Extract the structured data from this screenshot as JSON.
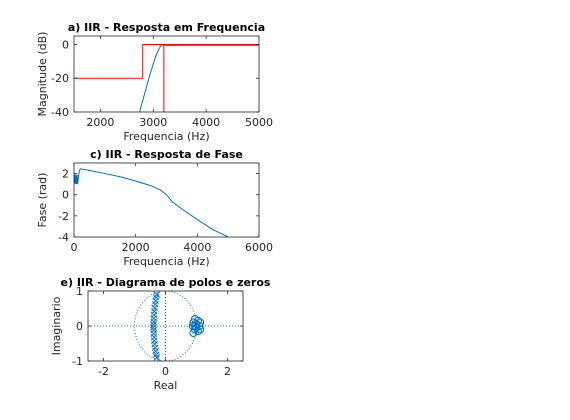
{
  "chart_data": [
    {
      "type": "line",
      "title": "a) IIR - Resposta em Frequencia",
      "xlabel": "Frequencia (Hz)",
      "ylabel": "Magnitude (dB)",
      "xlim": [
        1500,
        5000
      ],
      "ylim": [
        -40,
        5
      ],
      "xticks": [
        2000,
        3000,
        4000,
        5000
      ],
      "yticks": [
        0,
        -20,
        -40
      ],
      "series": [
        {
          "color": "#0072BD",
          "x": [
            2740,
            2780,
            2820,
            2860,
            2900,
            2940,
            2980,
            3020,
            3060,
            3100,
            3140,
            3180,
            3220,
            3260,
            3400,
            3600,
            4000,
            4500,
            5000
          ],
          "y": [
            -40,
            -35.5,
            -31,
            -26.5,
            -22,
            -17.5,
            -13.5,
            -9.5,
            -6,
            -3,
            -1,
            -0.2,
            0,
            0,
            0,
            0,
            0,
            0,
            0
          ]
        },
        {
          "color": "#FF0000",
          "x": [
            1500,
            2800,
            2800,
            5000
          ],
          "y": [
            -20,
            -20,
            0,
            0
          ]
        },
        {
          "color": "#FF0000",
          "x": [
            3200,
            3200,
            5000
          ],
          "y": [
            -40,
            -0.5,
            -0.5
          ]
        }
      ]
    },
    {
      "type": "line",
      "title": "c) IIR - Resposta de Fase",
      "xlabel": "Frequencia (Hz)",
      "ylabel": "Fase (rad)",
      "xlim": [
        0,
        6000
      ],
      "ylim": [
        -4,
        3
      ],
      "xticks": [
        0,
        2000,
        4000,
        6000
      ],
      "yticks": [
        2,
        0,
        -2,
        -4
      ],
      "series": [
        {
          "color": "#0072BD",
          "x": [
            0,
            20,
            40,
            60,
            80,
            100,
            120,
            150,
            200,
            500,
            1000,
            1500,
            2000,
            2500,
            2800,
            3000,
            3200,
            3500,
            4000,
            4500,
            5000
          ],
          "y": [
            1.0,
            1.9,
            1.0,
            1.9,
            1.0,
            1.9,
            1.0,
            1.9,
            2.45,
            2.3,
            2.0,
            1.7,
            1.3,
            0.85,
            0.45,
            0.0,
            -0.7,
            -1.35,
            -2.35,
            -3.3,
            -4.0
          ]
        }
      ]
    },
    {
      "type": "scatter",
      "title": "e) IIR - Diagrama de polos e zeros",
      "xlabel": "Real",
      "ylabel": "Imaginario",
      "xlim": [
        -2.5,
        2.5
      ],
      "ylim": [
        -1,
        1
      ],
      "xticks": [
        -2,
        0,
        2
      ],
      "yticks": [
        1,
        0,
        -1
      ],
      "unit_circle": true,
      "series": [
        {
          "marker": "o",
          "color": "#0072BD",
          "points": [
            [
              0.95,
              0.2
            ],
            [
              0.9,
              0.1
            ],
            [
              1.05,
              0.15
            ],
            [
              0.95,
              0.0
            ],
            [
              1.1,
              0.0
            ],
            [
              0.95,
              -0.1
            ],
            [
              1.05,
              -0.15
            ],
            [
              0.9,
              -0.2
            ],
            [
              1.0,
              0.05
            ],
            [
              1.0,
              -0.05
            ],
            [
              1.12,
              0.1
            ],
            [
              1.12,
              -0.1
            ],
            [
              0.88,
              0.0
            ]
          ]
        },
        {
          "marker": "x",
          "color": "#0072BD",
          "points": [
            [
              -0.28,
              0.9
            ],
            [
              -0.3,
              0.82
            ],
            [
              -0.32,
              0.72
            ],
            [
              -0.33,
              0.62
            ],
            [
              -0.35,
              0.52
            ],
            [
              -0.36,
              0.42
            ],
            [
              -0.37,
              0.32
            ],
            [
              -0.38,
              0.22
            ],
            [
              -0.38,
              0.12
            ],
            [
              -0.39,
              0.04
            ],
            [
              -0.39,
              -0.04
            ],
            [
              -0.38,
              -0.12
            ],
            [
              -0.38,
              -0.22
            ],
            [
              -0.37,
              -0.32
            ],
            [
              -0.36,
              -0.42
            ],
            [
              -0.35,
              -0.52
            ],
            [
              -0.33,
              -0.62
            ],
            [
              -0.32,
              -0.72
            ],
            [
              -0.3,
              -0.82
            ],
            [
              -0.28,
              -0.9
            ]
          ]
        }
      ]
    }
  ]
}
